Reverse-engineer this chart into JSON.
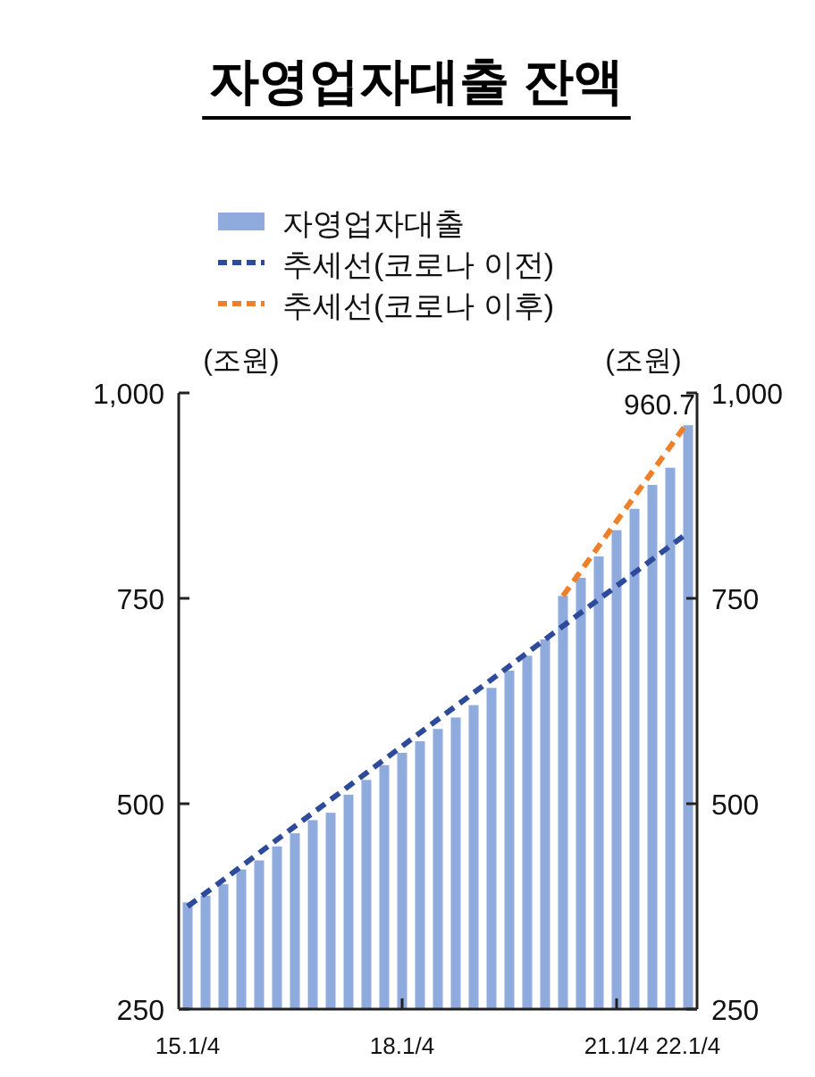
{
  "chart_data": {
    "type": "bar",
    "title": "자영업자대출 잔액",
    "ylabel": "(조원)",
    "y2label": "(조원)",
    "categories": [
      "15.1/4",
      null,
      null,
      null,
      null,
      null,
      null,
      null,
      null,
      null,
      null,
      null,
      "18.1/4",
      null,
      null,
      null,
      null,
      null,
      null,
      null,
      null,
      null,
      null,
      null,
      "21.1/4",
      null,
      null,
      null,
      "22.1/4"
    ],
    "series": [
      {
        "name": "자영업자대출",
        "color": "#8faadc",
        "values": [
          380,
          388,
          402,
          420,
          431,
          448,
          464,
          480,
          489,
          511,
          529,
          547,
          562,
          576,
          591,
          605,
          620,
          641,
          662,
          680,
          700,
          753,
          775,
          801,
          833,
          859,
          888,
          909,
          960.7
        ],
        "value_labels": [
          null,
          null,
          null,
          null,
          null,
          null,
          null,
          null,
          null,
          null,
          null,
          null,
          null,
          null,
          null,
          null,
          null,
          null,
          null,
          null,
          null,
          null,
          null,
          null,
          null,
          null,
          null,
          null,
          "960.7"
        ]
      },
      {
        "name": "추세선(코로나 이전)",
        "type": "line",
        "color": "#2e4b9b",
        "line_style": "dashed",
        "values": [
          375,
          null,
          null,
          null,
          null,
          null,
          null,
          null,
          null,
          null,
          null,
          null,
          null,
          null,
          null,
          null,
          null,
          null,
          null,
          null,
          null,
          null,
          null,
          null,
          null,
          null,
          null,
          null,
          830
        ]
      },
      {
        "name": "추세선(코로나 이후)",
        "type": "line",
        "color": "#f07f2a",
        "line_style": "dashed",
        "values": [
          null,
          null,
          null,
          null,
          null,
          null,
          null,
          null,
          null,
          null,
          null,
          null,
          null,
          null,
          null,
          null,
          null,
          null,
          null,
          null,
          null,
          753,
          null,
          null,
          null,
          null,
          null,
          null,
          965
        ]
      }
    ],
    "ylim": [
      250,
      1000
    ],
    "yticks": [
      250,
      500,
      750,
      {
        "value": 1000,
        "label": "1,000"
      }
    ],
    "y2lim": [
      250,
      1000
    ],
    "y2ticks": [
      250,
      500,
      750,
      {
        "value": 1000,
        "label": "1,000"
      }
    ],
    "legend": "top",
    "grid": false
  }
}
